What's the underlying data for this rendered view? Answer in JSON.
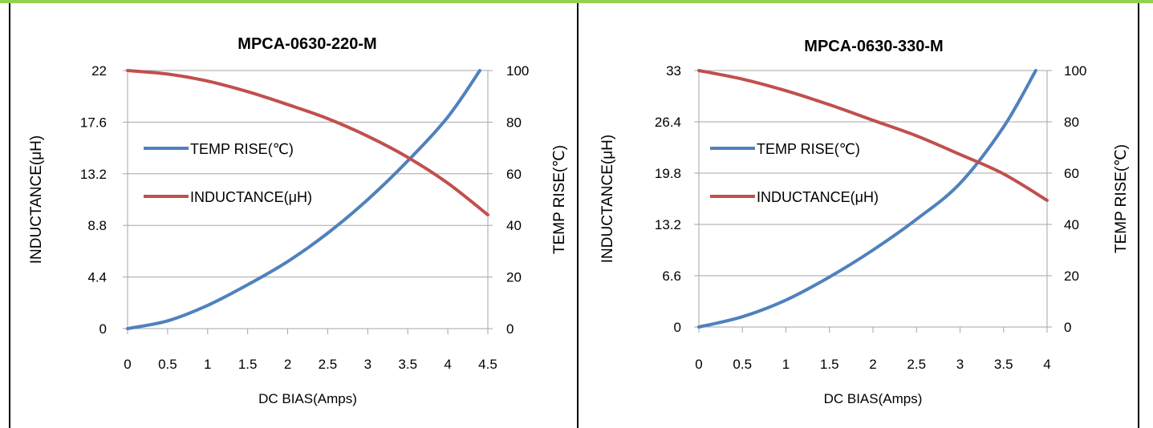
{
  "colors": {
    "temp": "#4f81bd",
    "inductance": "#c0504d",
    "grid": "#a6a6a6",
    "accent_bar": "#92d050"
  },
  "chart_data": [
    {
      "type": "line",
      "title": "MPCA-0630-220-M",
      "xlabel": "DC  BIAS(Amps)",
      "ylabel": "INDUCTANCE(μH)",
      "y2label": "TEMP RISE(℃)",
      "x_ticks": [
        "0",
        "0.5",
        "1",
        "1.5",
        "2",
        "2.5",
        "3",
        "3.5",
        "4",
        "4.5"
      ],
      "y_ticks": [
        "0",
        "4.4",
        "8.8",
        "13.2",
        "17.6",
        "22"
      ],
      "y2_ticks": [
        "0",
        "20",
        "40",
        "60",
        "80",
        "100"
      ],
      "xlim": [
        0,
        4.5
      ],
      "ylim": [
        0,
        22
      ],
      "y2lim": [
        0,
        100
      ],
      "grid": true,
      "legend": "left",
      "series": [
        {
          "name": "TEMP RISE(℃)",
          "axis": "right",
          "x": [
            0,
            0.5,
            1,
            1.5,
            2,
            2.5,
            3,
            3.5,
            4,
            4.4
          ],
          "y": [
            0,
            3,
            9,
            17,
            26,
            37,
            50,
            65,
            82,
            100
          ]
        },
        {
          "name": "INDUCTANCE(μH)",
          "axis": "left",
          "x": [
            0,
            0.5,
            1,
            1.5,
            2,
            2.5,
            3,
            3.5,
            4,
            4.5
          ],
          "y": [
            22,
            21.7,
            21.1,
            20.2,
            19.1,
            17.9,
            16.4,
            14.6,
            12.4,
            9.7
          ]
        }
      ]
    },
    {
      "type": "line",
      "title": "MPCA-0630-330-M",
      "xlabel": "DC  BIAS(Amps)",
      "ylabel": "INDUCTANCE(μH)",
      "y2label": "TEMP RISE(℃)",
      "x_ticks": [
        "0",
        "0.5",
        "1",
        "1.5",
        "2",
        "2.5",
        "3",
        "3.5",
        "4"
      ],
      "y_ticks": [
        "0",
        "6.6",
        "13.2",
        "19.8",
        "26.4",
        "33"
      ],
      "y2_ticks": [
        "0",
        "20",
        "40",
        "60",
        "80",
        "100"
      ],
      "xlim": [
        0,
        4
      ],
      "ylim": [
        0,
        33
      ],
      "y2lim": [
        0,
        100
      ],
      "grid": true,
      "legend": "left",
      "series": [
        {
          "name": "TEMP RISE(℃)",
          "axis": "right",
          "x": [
            0,
            0.5,
            1,
            1.5,
            2,
            2.5,
            3,
            3.5,
            3.87
          ],
          "y": [
            0,
            4,
            10.5,
            19.5,
            30,
            42,
            56,
            78,
            100
          ]
        },
        {
          "name": "INDUCTANCE(μH)",
          "axis": "left",
          "x": [
            0,
            0.5,
            1,
            1.5,
            2,
            2.5,
            3,
            3.5,
            4
          ],
          "y": [
            33,
            31.9,
            30.4,
            28.6,
            26.6,
            24.6,
            22.2,
            19.7,
            16.3
          ]
        }
      ]
    }
  ]
}
